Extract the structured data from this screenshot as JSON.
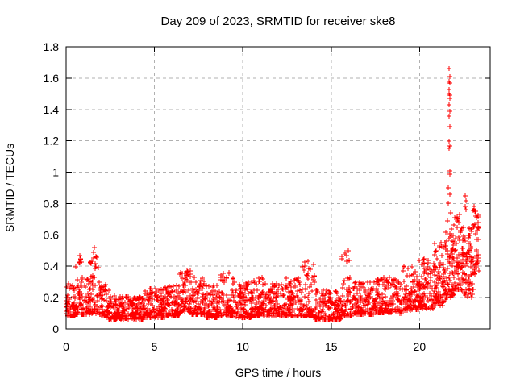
{
  "title": "Day 209 of 2023, SRMTID for receiver ske8",
  "chart_data": {
    "type": "scatter",
    "title": "Day 209 of 2023, SRMTID for receiver ske8",
    "xlabel": "GPS time / hours",
    "ylabel": "SRMTID / TECUs",
    "xlim": [
      0,
      24
    ],
    "ylim": [
      0,
      1.8
    ],
    "grid": true,
    "legend": "none",
    "marker": "plus",
    "marker_color": "#ff0000",
    "grid_color": "#b0b0b0",
    "border_color": "#000000",
    "background_color": "#ffffff",
    "xticks": {
      "values": [
        0,
        5,
        10,
        15,
        20
      ],
      "labels": [
        "0",
        "5",
        "10",
        "15",
        "20"
      ]
    },
    "yticks": {
      "values": [
        0,
        0.2,
        0.4,
        0.6,
        0.8,
        1,
        1.2,
        1.4,
        1.6,
        1.8
      ],
      "labels": [
        "0",
        "0.2",
        "0.4",
        "0.6",
        "0.8",
        "1",
        "1.2",
        "1.4",
        "1.6",
        "1.8"
      ]
    },
    "seed": 20230209,
    "density_segments": [
      [
        0.0,
        0.55,
        60,
        0.08,
        0.3,
        1.8
      ],
      [
        0.55,
        1.0,
        50,
        0.09,
        0.47,
        2.0
      ],
      [
        1.0,
        1.35,
        36,
        0.09,
        0.32,
        1.8
      ],
      [
        1.35,
        1.85,
        52,
        0.1,
        0.52,
        2.2
      ],
      [
        1.85,
        2.4,
        55,
        0.08,
        0.3,
        2.0
      ],
      [
        2.4,
        4.4,
        200,
        0.06,
        0.21,
        1.5
      ],
      [
        4.4,
        5.6,
        120,
        0.07,
        0.26,
        1.7
      ],
      [
        5.6,
        6.4,
        82,
        0.08,
        0.28,
        1.7
      ],
      [
        6.4,
        7.1,
        75,
        0.1,
        0.37,
        1.8
      ],
      [
        7.1,
        7.9,
        80,
        0.09,
        0.33,
        1.9
      ],
      [
        7.9,
        8.6,
        70,
        0.07,
        0.28,
        1.7
      ],
      [
        8.6,
        9.6,
        85,
        0.08,
        0.36,
        1.9
      ],
      [
        9.6,
        10.6,
        110,
        0.07,
        0.3,
        1.9
      ],
      [
        10.6,
        11.4,
        80,
        0.08,
        0.33,
        1.9
      ],
      [
        11.4,
        12.4,
        100,
        0.08,
        0.3,
        1.8
      ],
      [
        12.4,
        13.3,
        90,
        0.08,
        0.33,
        1.8
      ],
      [
        13.3,
        14.1,
        80,
        0.08,
        0.43,
        2.2
      ],
      [
        14.1,
        15.6,
        150,
        0.06,
        0.25,
        1.7
      ],
      [
        15.6,
        16.15,
        55,
        0.08,
        0.51,
        2.1
      ],
      [
        16.15,
        17.5,
        130,
        0.09,
        0.3,
        1.7
      ],
      [
        17.5,
        19.0,
        150,
        0.1,
        0.33,
        1.7
      ],
      [
        19.0,
        20.0,
        105,
        0.12,
        0.4,
        1.8
      ],
      [
        20.0,
        20.8,
        90,
        0.13,
        0.45,
        1.8
      ],
      [
        20.8,
        21.45,
        80,
        0.15,
        0.55,
        1.9
      ],
      [
        21.45,
        21.95,
        70,
        0.2,
        0.62,
        1.6
      ],
      [
        21.95,
        22.35,
        55,
        0.25,
        0.75,
        1.7
      ],
      [
        22.35,
        23.05,
        90,
        0.2,
        0.68,
        1.4
      ],
      [
        23.05,
        23.35,
        40,
        0.35,
        0.8,
        1.3
      ]
    ],
    "outlier_points": [
      [
        21.68,
        1.66
      ],
      [
        21.7,
        1.61
      ],
      [
        21.66,
        1.58
      ],
      [
        21.71,
        1.57
      ],
      [
        21.69,
        1.53
      ],
      [
        21.67,
        1.5
      ],
      [
        21.72,
        1.49
      ],
      [
        21.7,
        1.47
      ],
      [
        21.68,
        1.43
      ],
      [
        21.73,
        1.39
      ],
      [
        21.66,
        1.36
      ],
      [
        21.7,
        1.29
      ],
      [
        21.69,
        1.2
      ],
      [
        21.72,
        1.17
      ],
      [
        21.67,
        1.15
      ],
      [
        21.7,
        1.01
      ],
      [
        21.74,
        0.99
      ],
      [
        21.65,
        0.9
      ],
      [
        21.7,
        0.86
      ],
      [
        21.62,
        0.8
      ],
      [
        21.76,
        0.74
      ],
      [
        21.58,
        0.69
      ],
      [
        21.8,
        0.64
      ],
      [
        22.6,
        0.85
      ],
      [
        22.63,
        0.82
      ],
      [
        22.58,
        0.78
      ],
      [
        22.65,
        0.76
      ],
      [
        23.1,
        0.78
      ],
      [
        23.16,
        0.75
      ],
      [
        23.22,
        0.71
      ],
      [
        23.12,
        0.67
      ],
      [
        23.26,
        0.63
      ],
      [
        21.2,
        0.55
      ],
      [
        21.12,
        0.52
      ],
      [
        20.95,
        0.5
      ],
      [
        15.95,
        0.5
      ],
      [
        15.9,
        0.47
      ],
      [
        13.7,
        0.43
      ],
      [
        0.78,
        0.47
      ],
      [
        0.82,
        0.44
      ],
      [
        1.6,
        0.52
      ],
      [
        1.55,
        0.49
      ],
      [
        6.85,
        0.37
      ],
      [
        9.2,
        0.36
      ]
    ]
  }
}
